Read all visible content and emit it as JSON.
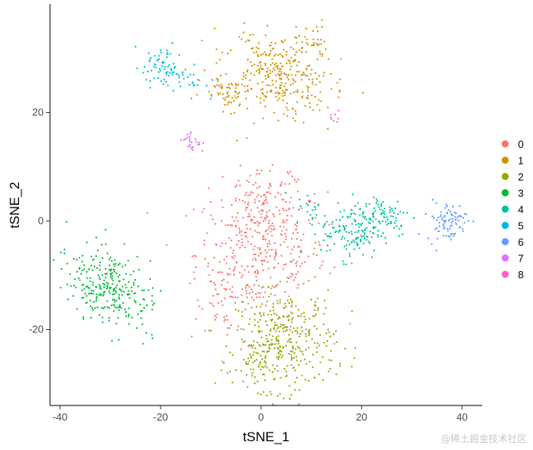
{
  "chart_data": {
    "type": "scatter",
    "title": "",
    "xlabel": "tSNE_1",
    "ylabel": "tSNE_2",
    "xlim": [
      -42,
      44
    ],
    "ylim": [
      -34,
      40
    ],
    "x_ticks": [
      -40,
      -20,
      0,
      20,
      40
    ],
    "y_ticks": [
      -20,
      0,
      20
    ],
    "grid": false,
    "legend_position": "right",
    "series": [
      {
        "name": "0",
        "color": "#F8766D",
        "clusters": [
          {
            "cx": 0,
            "cy": -6,
            "sx": 6.5,
            "sy": 6.5,
            "n": 380,
            "rot": 0
          },
          {
            "cx": 1,
            "cy": 3,
            "sx": 4,
            "sy": 3,
            "n": 90,
            "rot": 0
          },
          {
            "cx": -7,
            "cy": -14,
            "sx": 2.5,
            "sy": 3,
            "n": 35,
            "rot": 0
          }
        ]
      },
      {
        "name": "1",
        "color": "#D39200",
        "clusters": [
          {
            "cx": 3,
            "cy": 27,
            "sx": 5.5,
            "sy": 3.5,
            "n": 300,
            "rot": -0.35
          },
          {
            "cx": 10,
            "cy": 33,
            "sx": 1.5,
            "sy": 2,
            "n": 40,
            "rot": 0
          },
          {
            "cx": -6,
            "cy": 23,
            "sx": 3,
            "sy": 2,
            "n": 60,
            "rot": 0
          }
        ]
      },
      {
        "name": "2",
        "color": "#93AA00",
        "clusters": [
          {
            "cx": 5,
            "cy": -22,
            "sx": 5,
            "sy": 4.5,
            "n": 320,
            "rot": 0
          },
          {
            "cx": 0,
            "cy": -26,
            "sx": 3,
            "sy": 2.5,
            "n": 60,
            "rot": 0
          }
        ]
      },
      {
        "name": "3",
        "color": "#00BA38",
        "clusters": [
          {
            "cx": -31,
            "cy": -12,
            "sx": 4.5,
            "sy": 3.2,
            "n": 280,
            "rot": -0.7
          }
        ]
      },
      {
        "name": "4",
        "color": "#00C19F",
        "clusters": [
          {
            "cx": 18,
            "cy": -2,
            "sx": 3,
            "sy": 2.5,
            "n": 130,
            "rot": 0
          },
          {
            "cx": 24,
            "cy": 1,
            "sx": 3,
            "sy": 2,
            "n": 90,
            "rot": 0
          },
          {
            "cx": 10,
            "cy": 2,
            "sx": 1.5,
            "sy": 1.5,
            "n": 20,
            "rot": 0
          }
        ]
      },
      {
        "name": "5",
        "color": "#00B9E3",
        "clusters": [
          {
            "cx": -18,
            "cy": 28,
            "sx": 3.5,
            "sy": 1.8,
            "n": 90,
            "rot": -0.45
          }
        ]
      },
      {
        "name": "6",
        "color": "#619CFF",
        "clusters": [
          {
            "cx": 37,
            "cy": 0,
            "sx": 2,
            "sy": 1.8,
            "n": 90,
            "rot": 0
          }
        ]
      },
      {
        "name": "7",
        "color": "#DB72FB",
        "clusters": [
          {
            "cx": -13.5,
            "cy": 14.5,
            "sx": 0.8,
            "sy": 1,
            "n": 25,
            "rot": 0.5
          }
        ]
      },
      {
        "name": "8",
        "color": "#FF61C3",
        "clusters": [
          {
            "cx": 14.5,
            "cy": 19,
            "sx": 0.6,
            "sy": 0.5,
            "n": 8,
            "rot": 0
          }
        ]
      }
    ]
  },
  "watermark": "@稀土掘金技术社区"
}
